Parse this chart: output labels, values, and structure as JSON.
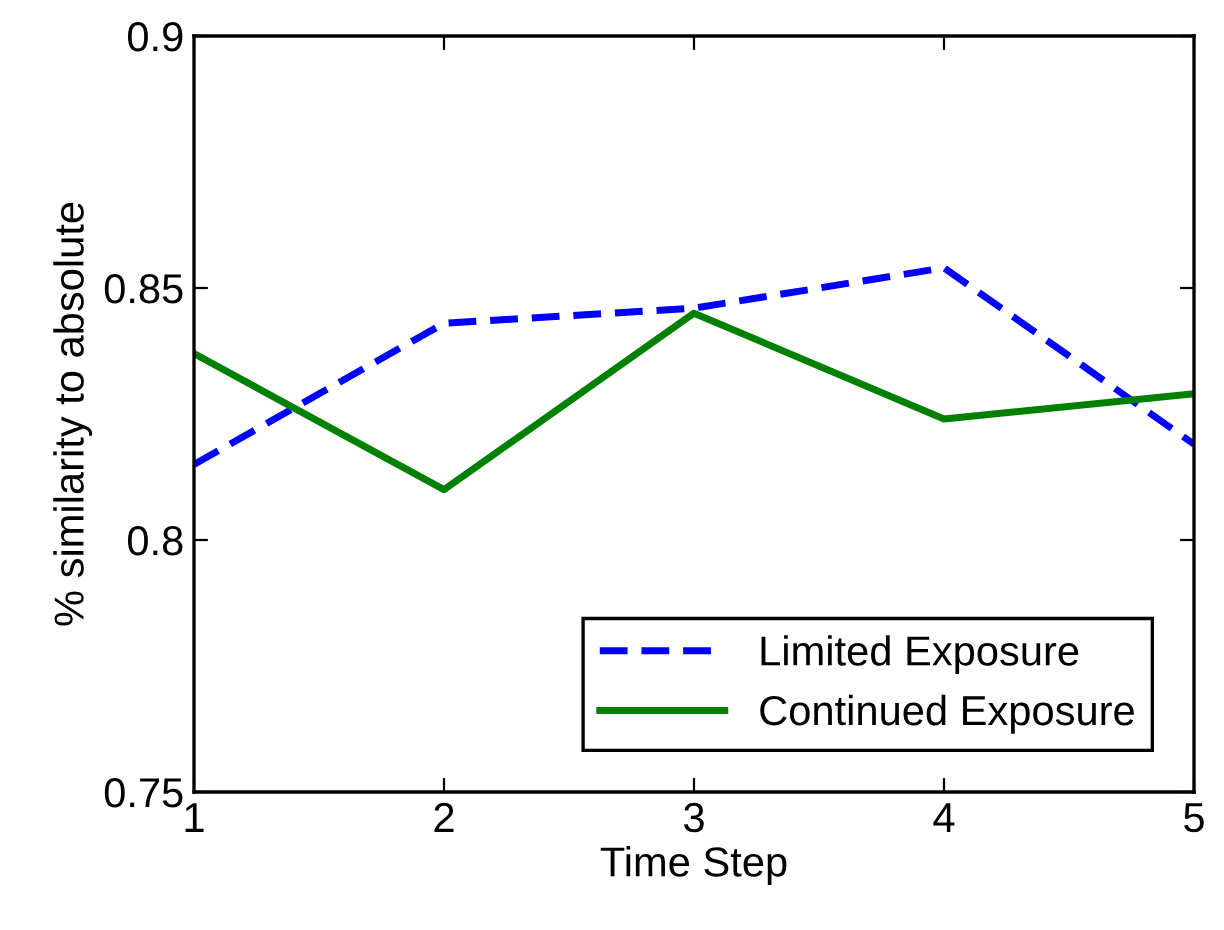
{
  "chart_data": {
    "type": "line",
    "xlabel": "Time Step",
    "ylabel": "% similarity to absolute",
    "x": [
      1,
      2,
      3,
      4,
      5
    ],
    "series": [
      {
        "name": "Limited Exposure",
        "color": "#0000ff",
        "line_style": "dashed",
        "values": [
          0.815,
          0.843,
          0.846,
          0.854,
          0.819
        ]
      },
      {
        "name": "Continued Exposure",
        "color": "#008000",
        "line_style": "solid",
        "values": [
          0.837,
          0.81,
          0.845,
          0.824,
          0.829
        ]
      }
    ],
    "xlim": [
      1,
      5
    ],
    "xticks": [
      1,
      2,
      3,
      4,
      5
    ],
    "ylim": [
      0.75,
      0.9
    ],
    "yticks": [
      0.75,
      0.8,
      0.85,
      0.9
    ],
    "grid": false,
    "legend": "lower right",
    "marker": "none"
  }
}
